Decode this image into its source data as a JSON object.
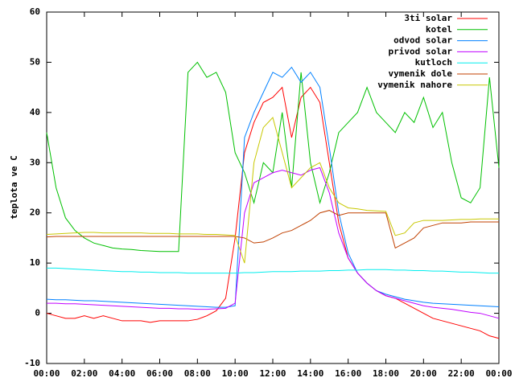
{
  "chart_data": {
    "type": "line",
    "ylabel": "teplota ve C",
    "x": [
      0,
      0.5,
      1,
      1.5,
      2,
      2.5,
      3,
      3.5,
      4,
      4.5,
      5,
      5.5,
      6,
      6.5,
      7,
      7.5,
      8,
      8.5,
      9,
      9.5,
      10,
      10.5,
      11,
      11.5,
      12,
      12.5,
      13,
      13.5,
      14,
      14.5,
      15,
      15.5,
      16,
      16.5,
      17,
      17.5,
      18,
      18.5,
      19,
      19.5,
      20,
      20.5,
      21,
      21.5,
      22,
      22.5,
      23,
      23.5,
      24
    ],
    "xlim": [
      0,
      24
    ],
    "xticks": [
      {
        "value": 0,
        "label": "00:00"
      },
      {
        "value": 2,
        "label": "02:00"
      },
      {
        "value": 4,
        "label": "04:00"
      },
      {
        "value": 6,
        "label": "06:00"
      },
      {
        "value": 8,
        "label": "08:00"
      },
      {
        "value": 10,
        "label": "10:00"
      },
      {
        "value": 12,
        "label": "12:00"
      },
      {
        "value": 14,
        "label": "14:00"
      },
      {
        "value": 16,
        "label": "16:00"
      },
      {
        "value": 18,
        "label": "18:00"
      },
      {
        "value": 20,
        "label": "20:00"
      },
      {
        "value": 22,
        "label": "22:00"
      },
      {
        "value": 24,
        "label": "00:00"
      }
    ],
    "ylim": [
      -10,
      60
    ],
    "yticks": [
      -10,
      0,
      10,
      20,
      30,
      40,
      50,
      60
    ],
    "legend": "top-right",
    "series": [
      {
        "name": "3ti solar",
        "color": "#ff0000",
        "values": [
          0,
          -0.5,
          -1,
          -1,
          -0.5,
          -1,
          -0.5,
          -1,
          -1.5,
          -1.5,
          -1.5,
          -1.8,
          -1.5,
          -1.5,
          -1.5,
          -1.5,
          -1.2,
          -0.5,
          0.5,
          3,
          15,
          32,
          38,
          42,
          43,
          45,
          35,
          43,
          45,
          42,
          30,
          18,
          11,
          8,
          6,
          4.5,
          3.5,
          3,
          2,
          1,
          0,
          -1,
          -1.5,
          -2,
          -2.5,
          -3,
          -3.5,
          -4.5,
          -5
        ]
      },
      {
        "name": "kotel",
        "color": "#00c000",
        "values": [
          36,
          25,
          19,
          16.5,
          15,
          14,
          13.5,
          13,
          12.8,
          12.7,
          12.5,
          12.4,
          12.3,
          12.3,
          12.3,
          48,
          50,
          47,
          48,
          44,
          32,
          28,
          22,
          30,
          28,
          40,
          25,
          48,
          30,
          22,
          28,
          36,
          38,
          40,
          45,
          40,
          38,
          36,
          40,
          38,
          43,
          37,
          40,
          30,
          23,
          22,
          25,
          47,
          29
        ]
      },
      {
        "name": "odvod solar",
        "color": "#0080ff",
        "values": [
          2.8,
          2.7,
          2.7,
          2.6,
          2.5,
          2.5,
          2.4,
          2.3,
          2.2,
          2.1,
          2,
          1.9,
          1.8,
          1.7,
          1.6,
          1.5,
          1.4,
          1.3,
          1.2,
          1.2,
          1.5,
          35,
          40,
          44,
          48,
          47,
          49,
          46,
          48,
          45,
          33,
          20,
          12,
          8,
          6,
          4.5,
          3.8,
          3.3,
          2.8,
          2.5,
          2.2,
          2,
          1.9,
          1.8,
          1.7,
          1.6,
          1.5,
          1.4,
          1.3
        ]
      },
      {
        "name": "privod solar",
        "color": "#c000ff",
        "values": [
          2,
          2,
          1.9,
          1.9,
          1.8,
          1.7,
          1.6,
          1.5,
          1.4,
          1.3,
          1.2,
          1.1,
          1,
          1,
          0.9,
          0.9,
          0.8,
          0.8,
          0.9,
          1,
          2,
          20,
          26,
          27,
          28,
          28.5,
          28,
          27.5,
          28.5,
          29,
          24,
          16,
          11,
          8,
          6,
          4.5,
          3.5,
          3,
          2.5,
          2,
          1.5,
          1.2,
          1,
          0.8,
          0.5,
          0.2,
          0,
          -0.5,
          -1
        ]
      },
      {
        "name": "kutloch",
        "color": "#00eeee",
        "values": [
          9,
          9,
          8.9,
          8.8,
          8.7,
          8.6,
          8.5,
          8.4,
          8.3,
          8.3,
          8.2,
          8.2,
          8.1,
          8.1,
          8.1,
          8,
          8,
          8,
          8,
          8,
          8,
          8.1,
          8.1,
          8.2,
          8.3,
          8.3,
          8.3,
          8.4,
          8.4,
          8.4,
          8.5,
          8.5,
          8.6,
          8.6,
          8.7,
          8.7,
          8.7,
          8.6,
          8.6,
          8.5,
          8.5,
          8.4,
          8.4,
          8.3,
          8.2,
          8.2,
          8.1,
          8,
          8
        ]
      },
      {
        "name": "vymenik dole",
        "color": "#c04000",
        "values": [
          15.2,
          15.3,
          15.3,
          15.3,
          15.3,
          15.3,
          15.3,
          15.3,
          15.3,
          15.3,
          15.3,
          15.3,
          15.3,
          15.3,
          15.3,
          15.3,
          15.3,
          15.3,
          15.3,
          15.3,
          15.3,
          15,
          14,
          14.2,
          15,
          16,
          16.5,
          17.5,
          18.5,
          20,
          20.5,
          19.5,
          20,
          20,
          20,
          20,
          20,
          13,
          14,
          15,
          17,
          17.5,
          18,
          18,
          18,
          18.2,
          18.2,
          18.2,
          18.2
        ]
      },
      {
        "name": "vymenik nahore",
        "color": "#c8c800",
        "values": [
          15.7,
          15.8,
          15.9,
          16,
          16.1,
          16.1,
          16,
          16,
          16,
          16,
          16,
          15.9,
          15.9,
          15.9,
          15.8,
          15.8,
          15.8,
          15.7,
          15.7,
          15.6,
          15.5,
          10,
          30,
          37,
          39,
          32,
          25,
          27,
          29,
          30,
          25,
          22,
          21,
          20.8,
          20.5,
          20.4,
          20.3,
          15.5,
          16,
          18,
          18.5,
          18.5,
          18.5,
          18.6,
          18.7,
          18.7,
          18.8,
          18.8,
          18.8
        ]
      }
    ]
  }
}
